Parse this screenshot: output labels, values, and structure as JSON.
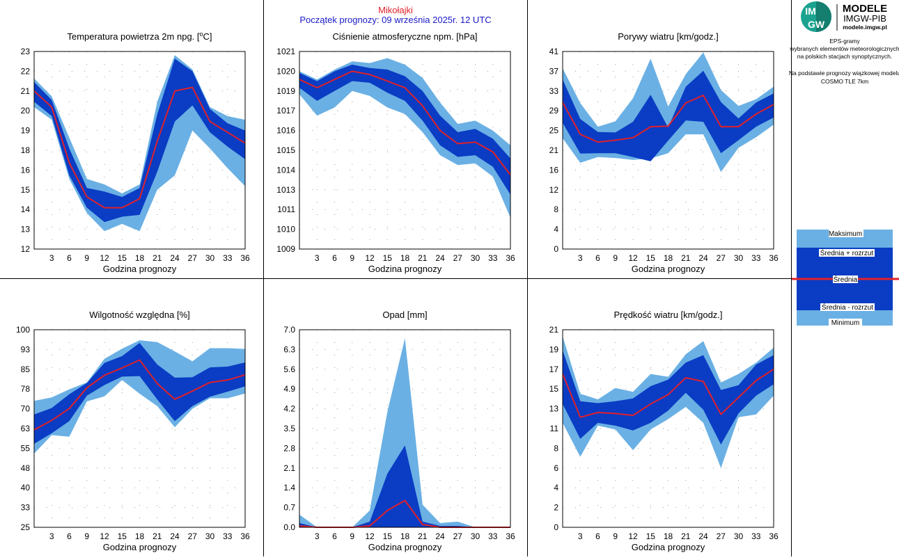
{
  "header": {
    "station": "Mikołajki",
    "forecast_start": "Początek prognozy: 09 września 2025r. 12 UTC"
  },
  "logo": {
    "brand_line1": "MODELE",
    "brand_line2": "IMGW-PIB",
    "url": "modele.imgw.pl",
    "mark_top": "IM",
    "mark_bottom": "GW",
    "colors": {
      "mark_bg": "#1ba38f",
      "mark_bg_dark": "#147e6f"
    }
  },
  "info": {
    "lines_1": [
      "EPS-gramy",
      "wybranych elementów meteorologicznych",
      "na polskich stacjach  synoptycznych."
    ],
    "lines_2": [
      "Na podstawie prognozy wiązkowej modelu",
      "COSMO TLE 7km"
    ]
  },
  "legend": {
    "items": [
      "Maksimum",
      "Średnia + rozrzut",
      "Średnia",
      "Średnia - rozrzut",
      "Minimum"
    ]
  },
  "colors": {
    "outer_band": "#6ab0e4",
    "inner_band": "#0a3cc4",
    "mean": "#e0202a"
  },
  "chart_data": [
    {
      "type": "area",
      "title_html": "Temperatura powietrza 2m npg. [°C]",
      "title_main": "Temperatura powietrza 2m npg. [",
      "title_sup": "o",
      "title_end": "C]",
      "xlabel": "Godzina prognozy",
      "x": [
        0,
        3,
        6,
        9,
        12,
        15,
        18,
        21,
        24,
        27,
        30,
        33,
        36
      ],
      "xticks": [
        3,
        6,
        9,
        12,
        15,
        18,
        21,
        24,
        27,
        30,
        33,
        36
      ],
      "yticks": [
        12,
        13,
        14,
        15,
        16,
        18,
        19,
        20,
        21,
        22,
        23
      ],
      "ytick_labels": [
        "12",
        "13",
        "14",
        "15",
        "16",
        "18",
        "19",
        "20",
        "21",
        "22",
        "23"
      ],
      "ylim": [
        12,
        23
      ],
      "series": {
        "max": [
          21.5,
          20.5,
          18.2,
          15.9,
          15.6,
          15.1,
          15.6,
          20.2,
          22.8,
          22.0,
          19.9,
          19.4,
          19.2
        ],
        "upper": [
          21.3,
          20.3,
          17.6,
          15.4,
          15.2,
          14.9,
          15.4,
          19.5,
          22.6,
          21.9,
          19.8,
          19.0,
          18.6
        ],
        "mean": [
          20.8,
          19.9,
          16.8,
          14.9,
          14.3,
          14.3,
          14.8,
          18.0,
          20.8,
          21.0,
          19.1,
          18.5,
          17.9
        ],
        "lower": [
          20.2,
          19.4,
          16.1,
          14.3,
          13.5,
          13.8,
          13.9,
          16.3,
          19.1,
          20.0,
          18.5,
          17.7,
          17.0
        ],
        "min": [
          19.9,
          19.2,
          15.9,
          14.0,
          13.0,
          13.4,
          13.0,
          15.3,
          16.1,
          18.6,
          17.6,
          16.5,
          15.5
        ]
      }
    },
    {
      "type": "area",
      "title": "Ciśnienie atmosferyczne npm. [hPa]",
      "xlabel": "Godzina prognozy",
      "x": [
        0,
        3,
        6,
        9,
        12,
        15,
        18,
        21,
        24,
        27,
        30,
        33,
        36
      ],
      "xticks": [
        3,
        6,
        9,
        12,
        15,
        18,
        21,
        24,
        27,
        30,
        33,
        36
      ],
      "yticks": [
        1009,
        1010,
        1011,
        1013,
        1014,
        1015,
        1016,
        1017,
        1019,
        1020,
        1021
      ],
      "ytick_labels": [
        "1009",
        "1010",
        "1011",
        "1013",
        "1014",
        "1015",
        "1016",
        "1017",
        "1019",
        "1020",
        "1021"
      ],
      "ylim": [
        1009,
        1021
      ],
      "series": {
        "max": [
          1019.8,
          1019.3,
          1019.9,
          1020.4,
          1020.3,
          1020.6,
          1020.2,
          1019.4,
          1017.9,
          1016.6,
          1016.8,
          1016.2,
          1015.3
        ],
        "upper": [
          1019.7,
          1019.2,
          1019.8,
          1020.2,
          1020.0,
          1019.9,
          1019.5,
          1018.6,
          1017.1,
          1016.1,
          1016.3,
          1015.7,
          1014.5
        ],
        "mean": [
          1019.3,
          1018.8,
          1019.3,
          1019.8,
          1019.6,
          1019.2,
          1018.8,
          1017.7,
          1016.2,
          1015.4,
          1015.5,
          1014.9,
          1013.5
        ],
        "lower": [
          1018.8,
          1018.0,
          1018.6,
          1019.2,
          1019.1,
          1018.5,
          1018.0,
          1016.8,
          1015.3,
          1014.6,
          1014.7,
          1014.0,
          1012.3
        ],
        "min": [
          1018.4,
          1017.1,
          1017.6,
          1018.6,
          1018.3,
          1017.6,
          1017.2,
          1016.1,
          1014.7,
          1014.1,
          1014.2,
          1013.4,
          1010.9
        ]
      }
    },
    {
      "type": "area",
      "title": "Porywy wiatru [km/godz.]",
      "xlabel": "Godzina prognozy",
      "x": [
        0,
        3,
        6,
        9,
        12,
        15,
        18,
        21,
        24,
        27,
        30,
        33,
        36
      ],
      "xticks": [
        3,
        6,
        9,
        12,
        15,
        18,
        21,
        24,
        27,
        30,
        33,
        36
      ],
      "yticks": [
        0,
        4,
        8,
        12,
        16,
        21,
        25,
        29,
        33,
        37,
        41
      ],
      "ytick_labels": [
        "0",
        "4",
        "8",
        "12",
        "16",
        "21",
        "25",
        "29",
        "33",
        "37",
        "41"
      ],
      "ylim": [
        0,
        41
      ],
      "series": {
        "max": [
          37.5,
          30.3,
          25.4,
          26.5,
          31.3,
          39.5,
          29.6,
          36.3,
          40.8,
          33.0,
          29.7,
          31.1,
          33.7
        ],
        "upper": [
          35.2,
          27.0,
          24.3,
          24.2,
          26.4,
          32.0,
          25.2,
          33.7,
          37.0,
          30.5,
          27.1,
          30.4,
          32.3
        ],
        "mean": [
          30.4,
          23.8,
          22.2,
          22.6,
          23.1,
          25.4,
          25.5,
          30.3,
          31.9,
          25.4,
          25.4,
          28.0,
          30.0
        ],
        "lower": [
          26.2,
          19.8,
          19.9,
          19.9,
          19.1,
          18.2,
          22.5,
          26.7,
          26.4,
          19.9,
          22.6,
          25.4,
          27.3
        ],
        "min": [
          23.0,
          17.9,
          19.1,
          18.9,
          18.5,
          18.8,
          19.9,
          23.8,
          23.8,
          16.0,
          21.0,
          23.2,
          25.8
        ]
      }
    },
    {
      "type": "area",
      "title": "Wilgotność względna [%]",
      "xlabel": "Godzina prognozy",
      "x": [
        0,
        3,
        6,
        9,
        12,
        15,
        18,
        21,
        24,
        27,
        30,
        33,
        36
      ],
      "xticks": [
        3,
        6,
        9,
        12,
        15,
        18,
        21,
        24,
        27,
        30,
        33,
        36
      ],
      "yticks": [
        25,
        33,
        40,
        48,
        55,
        63,
        70,
        78,
        85,
        93,
        100
      ],
      "ytick_labels": [
        "25",
        "33",
        "40",
        "48",
        "55",
        "63",
        "70",
        "78",
        "85",
        "93",
        "100"
      ],
      "ylim": [
        25,
        100
      ],
      "series": {
        "max": [
          73.0,
          74.3,
          77.4,
          80.0,
          89.0,
          92.8,
          96.0,
          95.3,
          91.8,
          88.0,
          93.0,
          93.0,
          92.7
        ],
        "upper": [
          67.8,
          70.3,
          75.5,
          79.8,
          87.4,
          90.0,
          95.0,
          86.8,
          81.8,
          82.0,
          85.7,
          86.0,
          87.6
        ],
        "mean": [
          62.0,
          65.6,
          70.1,
          78.0,
          82.7,
          85.5,
          88.5,
          79.6,
          73.6,
          76.7,
          80.0,
          80.9,
          82.9
        ],
        "lower": [
          56.7,
          60.7,
          65.3,
          75.0,
          79.0,
          82.2,
          82.4,
          73.5,
          65.3,
          71.0,
          74.6,
          76.5,
          78.5
        ],
        "min": [
          53.0,
          60.0,
          59.4,
          72.8,
          74.7,
          80.9,
          75.7,
          71.0,
          63.0,
          70.0,
          74.0,
          74.0,
          75.8
        ]
      }
    },
    {
      "type": "area",
      "title": "Opad [mm]",
      "xlabel": "Godzina prognozy",
      "x": [
        0,
        3,
        6,
        9,
        12,
        15,
        18,
        21,
        24,
        27,
        30,
        33,
        36
      ],
      "xticks": [
        3,
        6,
        9,
        12,
        15,
        18,
        21,
        24,
        27,
        30,
        33,
        36
      ],
      "yticks": [
        0.0,
        0.7,
        1.4,
        2.1,
        2.8,
        3.5,
        4.2,
        4.9,
        5.6,
        6.3,
        7.0
      ],
      "ytick_labels": [
        "0.0",
        "0.7",
        "1.4",
        "2.1",
        "2.8",
        "3.5",
        "4.2",
        "4.9",
        "5.6",
        "6.3",
        "7.0"
      ],
      "ylim": [
        0,
        7
      ],
      "series": {
        "max": [
          0.45,
          0.0,
          0.0,
          0.0,
          0.6,
          4.1,
          6.7,
          0.8,
          0.15,
          0.2,
          0.0,
          0.0,
          0.0
        ],
        "upper": [
          0.15,
          0.0,
          0.0,
          0.0,
          0.2,
          1.9,
          2.9,
          0.2,
          0.05,
          0.05,
          0.0,
          0.0,
          0.0
        ],
        "mean": [
          0.05,
          0.0,
          0.0,
          0.0,
          0.05,
          0.6,
          0.95,
          0.1,
          0.0,
          0.0,
          0.0,
          0.0,
          0.0
        ],
        "lower": [
          0.0,
          0.0,
          0.0,
          0.0,
          0.0,
          0.0,
          0.0,
          0.0,
          0.0,
          0.0,
          0.0,
          0.0,
          0.0
        ],
        "min": [
          0.0,
          0.0,
          0.0,
          0.0,
          0.0,
          0.0,
          0.0,
          0.0,
          0.0,
          0.0,
          0.0,
          0.0,
          0.0
        ]
      }
    },
    {
      "type": "area",
      "title": "Prędkość wiatru [km/godz.]",
      "xlabel": "Godzina prognozy",
      "x": [
        0,
        3,
        6,
        9,
        12,
        15,
        18,
        21,
        24,
        27,
        30,
        33,
        36
      ],
      "xticks": [
        3,
        6,
        9,
        12,
        15,
        18,
        21,
        24,
        27,
        30,
        33,
        36
      ],
      "yticks": [
        0,
        2,
        4,
        6,
        8,
        11,
        13,
        15,
        17,
        19,
        21
      ],
      "ytick_labels": [
        "0",
        "2",
        "4",
        "6",
        "8",
        "11",
        "13",
        "15",
        "17",
        "19",
        "21"
      ],
      "ylim": [
        0,
        21
      ],
      "series": {
        "max": [
          20.3,
          14.2,
          13.6,
          14.8,
          14.4,
          16.3,
          16.0,
          18.4,
          19.8,
          15.4,
          16.3,
          17.5,
          19.1
        ],
        "upper": [
          18.8,
          13.4,
          13.2,
          13.4,
          13.7,
          15.0,
          15.7,
          17.5,
          18.3,
          14.6,
          15.1,
          17.3,
          18.3
        ],
        "mean": [
          16.3,
          11.7,
          12.2,
          12.1,
          11.9,
          13.1,
          14.1,
          15.9,
          15.5,
          12.0,
          13.8,
          15.6,
          16.8
        ],
        "lower": [
          13.1,
          9.4,
          11.1,
          10.8,
          10.3,
          11.1,
          12.4,
          14.3,
          12.5,
          8.8,
          12.1,
          14.0,
          15.2
        ],
        "min": [
          11.1,
          7.5,
          10.8,
          10.4,
          8.2,
          10.4,
          11.5,
          12.8,
          11.1,
          6.3,
          11.7,
          12.0,
          14.0
        ]
      }
    }
  ]
}
